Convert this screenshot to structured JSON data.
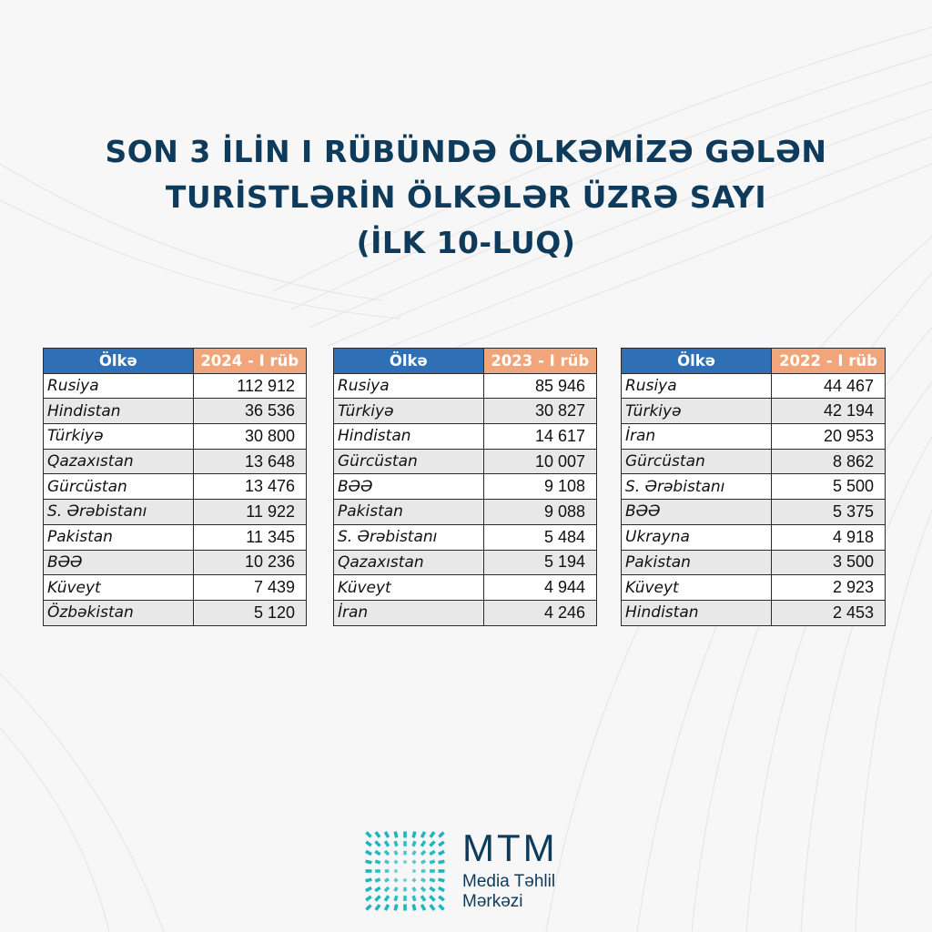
{
  "title": {
    "line1": "SON 3 İLİN I RÜBÜNDƏ ÖLKƏMİZƏ GƏLƏN",
    "line2": "TURİSTLƏRİN ÖLKƏLƏR ÜZRƏ SAYI",
    "line3": "(İLK 10-LUQ)"
  },
  "colors": {
    "title": "#0e3b5c",
    "header_country": "#2e6fb5",
    "header_year": "#f0a57a",
    "row_alt": "#e8e8e8",
    "logo_accent": "#1fb5bf"
  },
  "tables": [
    {
      "header_country": "Ölkə",
      "header_year": "2024 - I rüb",
      "rows": [
        {
          "country": "Rusiya",
          "value": "112 912"
        },
        {
          "country": "Hindistan",
          "value": "36 536"
        },
        {
          "country": "Türkiyə",
          "value": "30 800"
        },
        {
          "country": "Qazaxıstan",
          "value": "13 648"
        },
        {
          "country": "Gürcüstan",
          "value": "13 476"
        },
        {
          "country": "S. Ərəbistanı",
          "value": "11 922"
        },
        {
          "country": "Pakistan",
          "value": "11 345"
        },
        {
          "country": "BƏƏ",
          "value": "10 236"
        },
        {
          "country": "Küveyt",
          "value": "7 439"
        },
        {
          "country": "Özbəkistan",
          "value": "5 120"
        }
      ]
    },
    {
      "header_country": "Ölkə",
      "header_year": "2023 - I rüb",
      "rows": [
        {
          "country": "Rusiya",
          "value": "85 946"
        },
        {
          "country": "Türkiyə",
          "value": "30 827"
        },
        {
          "country": "Hindistan",
          "value": "14 617"
        },
        {
          "country": "Gürcüstan",
          "value": "10 007"
        },
        {
          "country": "BƏƏ",
          "value": "9 108"
        },
        {
          "country": "Pakistan",
          "value": "9 088"
        },
        {
          "country": "S. Ərəbistanı",
          "value": "5 484"
        },
        {
          "country": "Qazaxıstan",
          "value": "5 194"
        },
        {
          "country": "Küveyt",
          "value": "4 944"
        },
        {
          "country": "İran",
          "value": "4 246"
        }
      ]
    },
    {
      "header_country": "Ölkə",
      "header_year": "2022 - I rüb",
      "rows": [
        {
          "country": "Rusiya",
          "value": "44 467"
        },
        {
          "country": "Türkiyə",
          "value": "42 194"
        },
        {
          "country": "İran",
          "value": "20 953"
        },
        {
          "country": "Gürcüstan",
          "value": "8 862"
        },
        {
          "country": "S. Ərəbistanı",
          "value": "5 500"
        },
        {
          "country": "BƏƏ",
          "value": "5 375"
        },
        {
          "country": "Ukrayna",
          "value": "4 918"
        },
        {
          "country": "Pakistan",
          "value": "3 500"
        },
        {
          "country": "Küveyt",
          "value": "2 923"
        },
        {
          "country": "Hindistan",
          "value": "2 453"
        }
      ]
    }
  ],
  "logo": {
    "brand": "MTM",
    "sub_line1": "Media Təhlil",
    "sub_line2": "Mərkəzi",
    "icon": "radiating-grid-icon"
  },
  "chart_data": {
    "type": "table",
    "title": "SON 3 İLİN I RÜBÜNDƏ ÖLKƏMİZƏ GƏLƏN TURİSTLƏRİN ÖLKƏLƏR ÜZRƏ SAYI (İLK 10-LUQ)",
    "tables": [
      {
        "columns": [
          "Ölkə",
          "2024 - I rüb"
        ],
        "rows": [
          [
            "Rusiya",
            112912
          ],
          [
            "Hindistan",
            36536
          ],
          [
            "Türkiyə",
            30800
          ],
          [
            "Qazaxıstan",
            13648
          ],
          [
            "Gürcüstan",
            13476
          ],
          [
            "S. Ərəbistanı",
            11922
          ],
          [
            "Pakistan",
            11345
          ],
          [
            "BƏƏ",
            10236
          ],
          [
            "Küveyt",
            7439
          ],
          [
            "Özbəkistan",
            5120
          ]
        ]
      },
      {
        "columns": [
          "Ölkə",
          "2023 - I rüb"
        ],
        "rows": [
          [
            "Rusiya",
            85946
          ],
          [
            "Türkiyə",
            30827
          ],
          [
            "Hindistan",
            14617
          ],
          [
            "Gürcüstan",
            10007
          ],
          [
            "BƏƏ",
            9108
          ],
          [
            "Pakistan",
            9088
          ],
          [
            "S. Ərəbistanı",
            5484
          ],
          [
            "Qazaxıstan",
            5194
          ],
          [
            "Küveyt",
            4944
          ],
          [
            "İran",
            4246
          ]
        ]
      },
      {
        "columns": [
          "Ölkə",
          "2022 - I rüb"
        ],
        "rows": [
          [
            "Rusiya",
            44467
          ],
          [
            "Türkiyə",
            42194
          ],
          [
            "İran",
            20953
          ],
          [
            "Gürcüstan",
            8862
          ],
          [
            "S. Ərəbistanı",
            5500
          ],
          [
            "BƏƏ",
            5375
          ],
          [
            "Ukrayna",
            4918
          ],
          [
            "Pakistan",
            3500
          ],
          [
            "Küveyt",
            2923
          ],
          [
            "Hindistan",
            2453
          ]
        ]
      }
    ]
  }
}
